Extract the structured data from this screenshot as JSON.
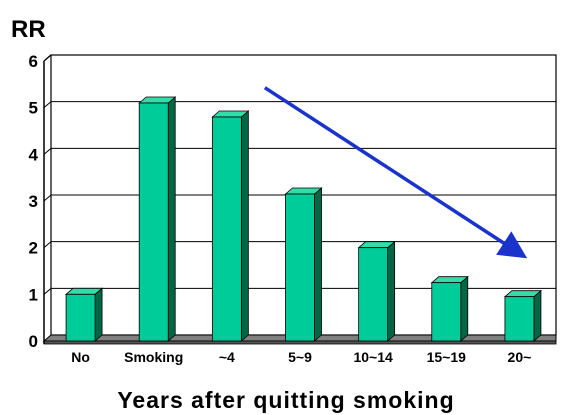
{
  "chart_data": {
    "type": "bar",
    "title": "",
    "ylabel": "RR",
    "xlabel": "Years after quitting smoking",
    "categories": [
      "No",
      "Smoking",
      "~4",
      "5~9",
      "10~14",
      "15~19",
      "20~"
    ],
    "values": [
      1.0,
      5.1,
      4.8,
      3.15,
      2.0,
      1.25,
      0.95
    ],
    "ylim": [
      0,
      6
    ],
    "yticks": [
      0,
      1,
      2,
      3,
      4,
      5,
      6
    ],
    "grid": true,
    "bar_color": "#00cc99",
    "bar_side_color": "#006644",
    "bar_top_color": "#33dda8",
    "floor_color": "#808080",
    "annotation": {
      "type": "arrow",
      "color": "#1a33cc",
      "from": {
        "x": "~4",
        "y": 5.0
      },
      "to": {
        "x": "20~",
        "y": 1.85
      }
    }
  }
}
